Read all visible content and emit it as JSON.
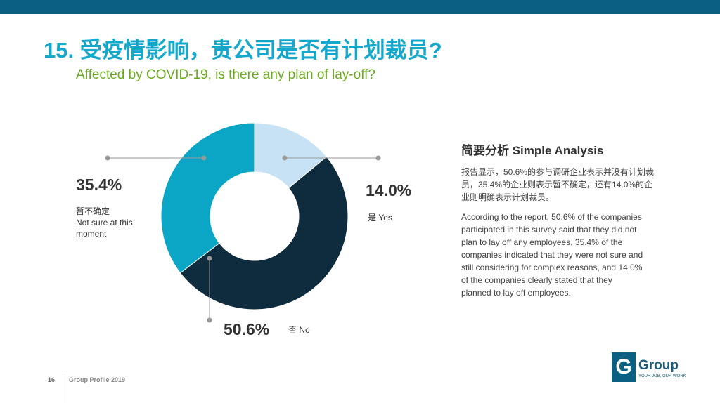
{
  "header": {
    "title": "15. 受疫情影响，贵公司是否有计划裁员?",
    "subtitle": "Affected by COVID-19, is there any plan of lay-off?"
  },
  "chart_data": {
    "type": "pie",
    "donut": true,
    "categories": [
      "是 Yes",
      "否 No",
      "暂不确定 Not sure at this moment"
    ],
    "values": [
      14.0,
      50.6,
      35.4
    ],
    "value_labels": [
      "14.0%",
      "50.6%",
      "35.4%"
    ],
    "colors": [
      "#c6e2f4",
      "#0e2c3e",
      "#0ba6c6"
    ],
    "label_lines": [
      "是 Yes",
      "否 No",
      "暂不确定",
      "Not sure at this",
      "moment"
    ]
  },
  "analysis": {
    "heading": "简要分析 Simple Analysis",
    "cn": "报告显示，50.6%的参与调研企业表示并没有计划裁员，35.4%的企业则表示暂不确定，还有14.0%的企业则明确表示计划裁员。",
    "en": "According to the report, 50.6% of the companies participated in this survey said that they did not plan to lay off any employees, 35.4% of the companies indicated that they were not sure and still considering for complex reasons, and 14.0% of the companies clearly stated that they planned to lay off employees."
  },
  "footer": {
    "page": "16",
    "text": "Group Profile 2019",
    "logo_text": "Group",
    "logo_mark": "G",
    "tagline": "YOUR JOB, OUR WORK"
  }
}
